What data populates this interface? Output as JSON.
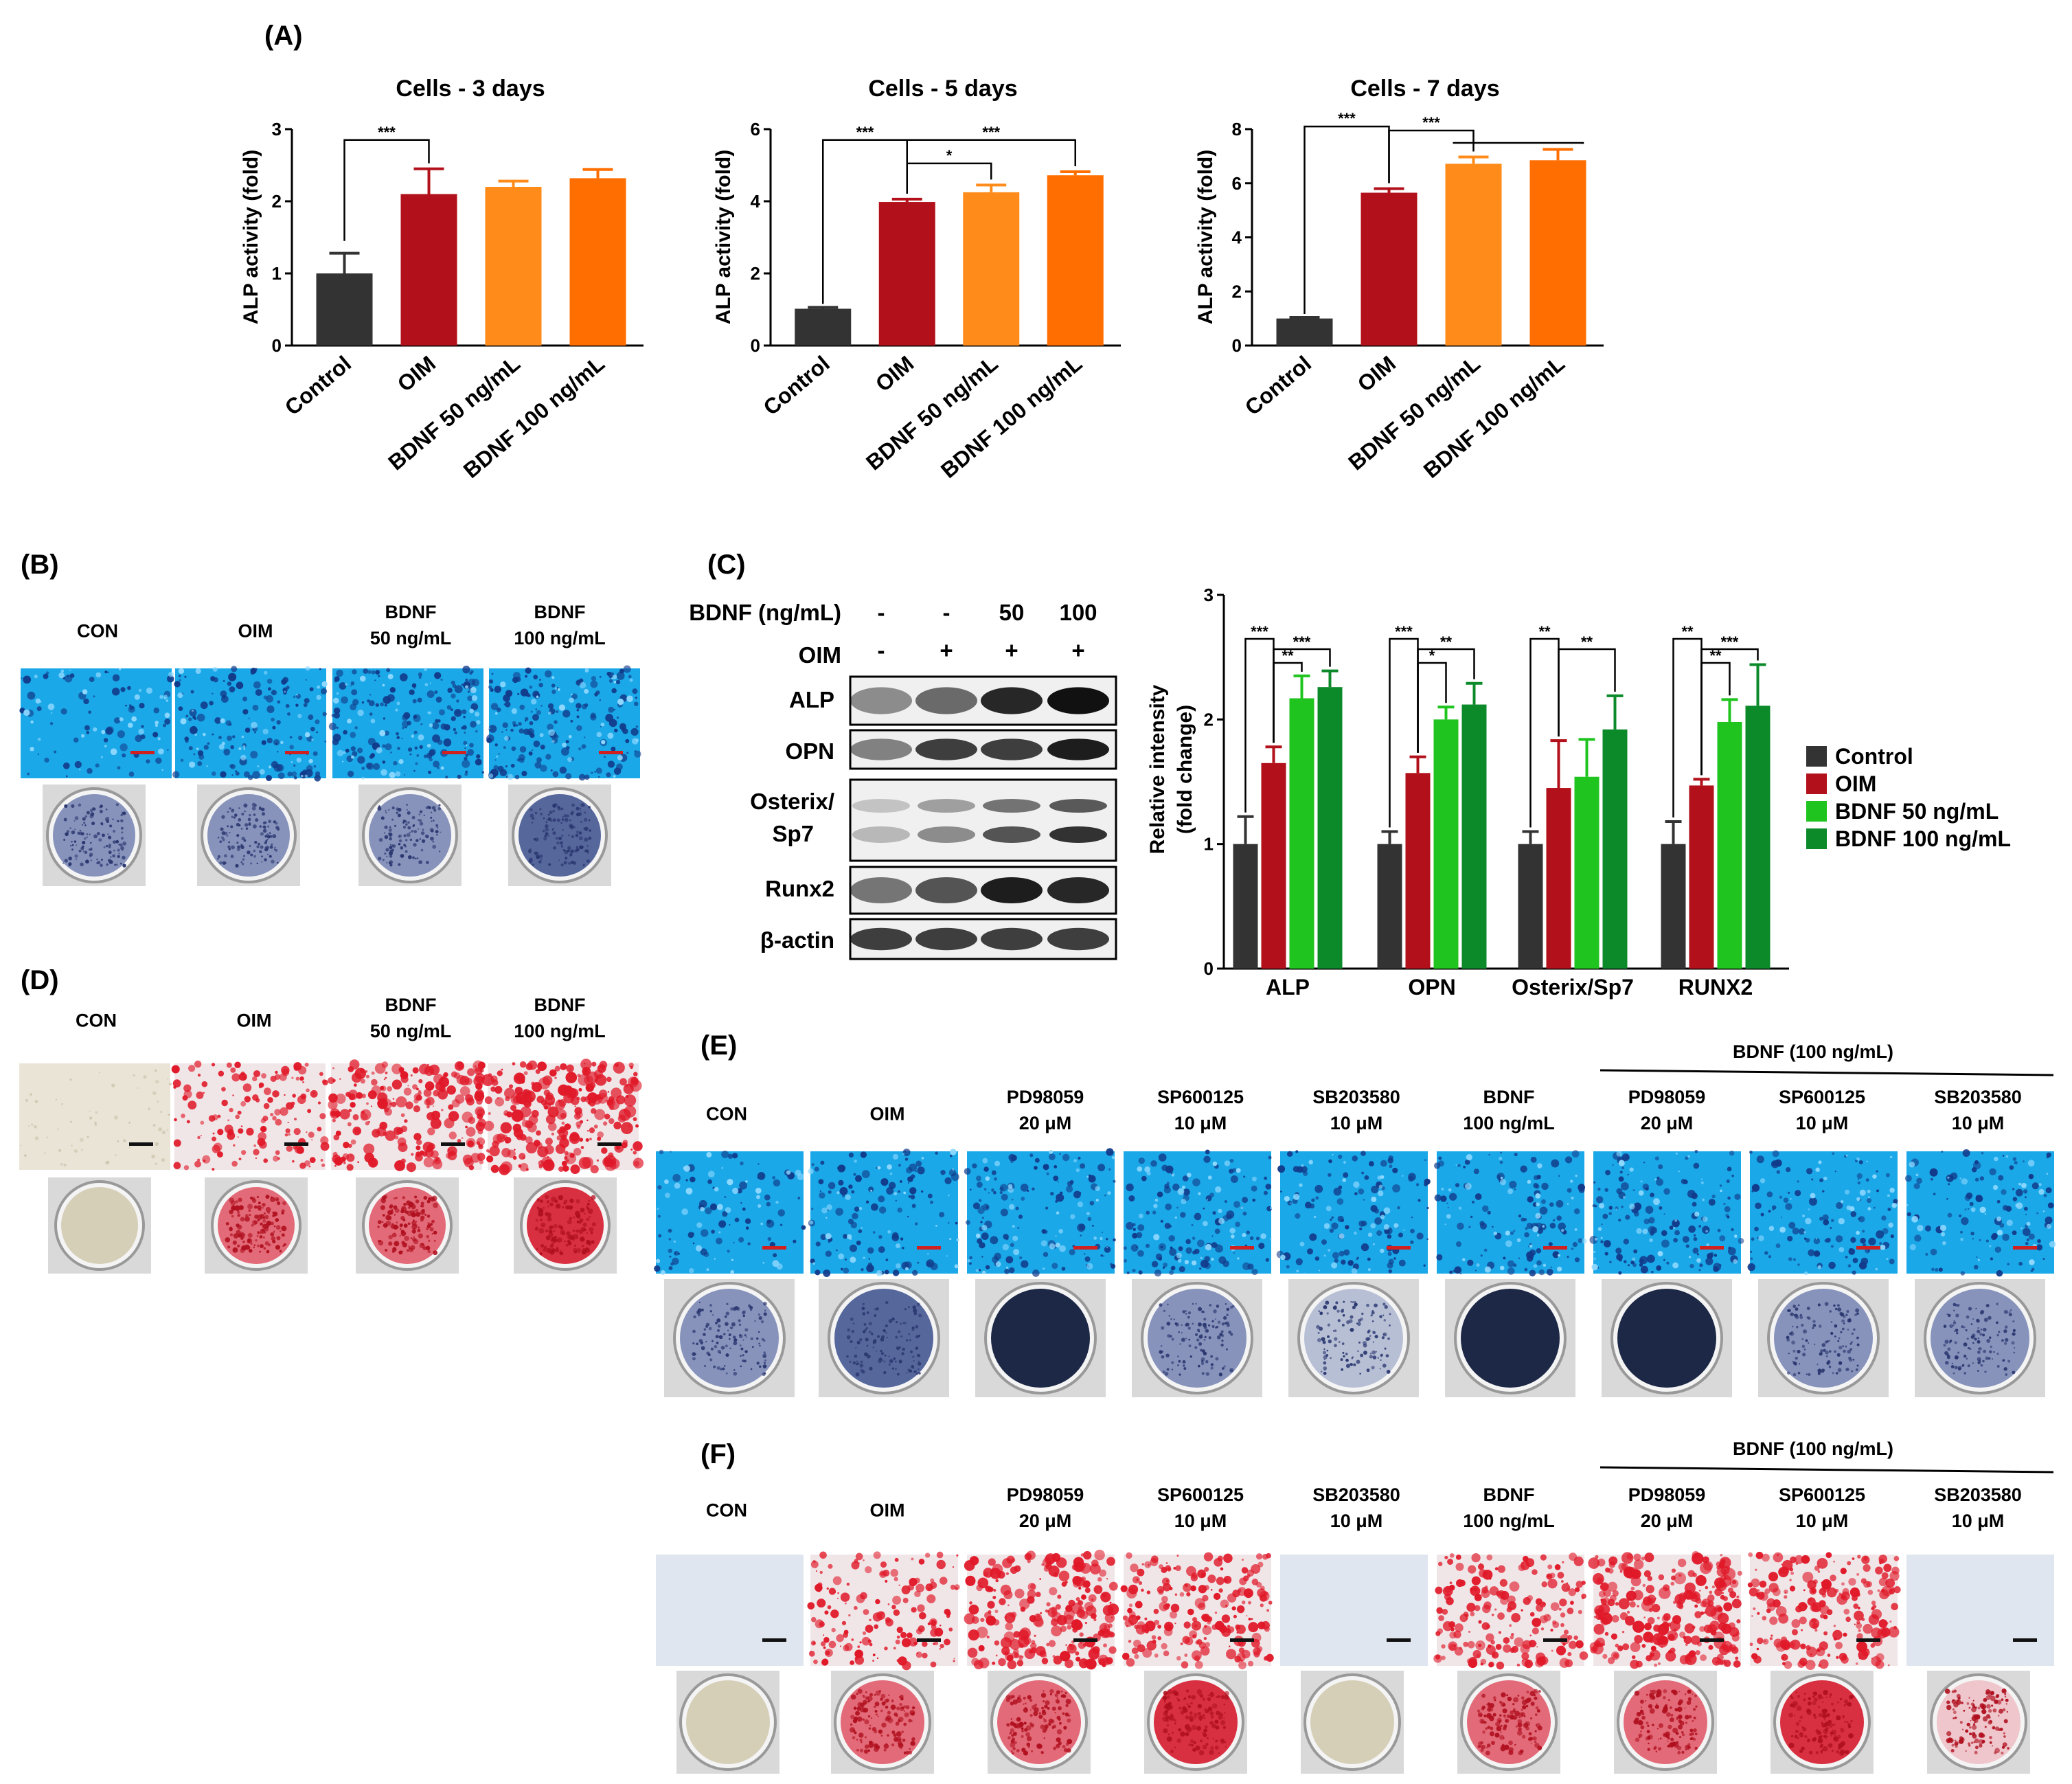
{
  "panel_labels": {
    "A": "(A)",
    "B": "(B)",
    "C": "(C)",
    "D": "(D)",
    "E": "(E)",
    "F": "(F)"
  },
  "colors": {
    "control": "#333333",
    "oim": "#b2101a",
    "bdnf50_orange": "#ff8c1a",
    "bdnf100_orange": "#ff6e00",
    "bdnf50_green": "#1fc41f",
    "bdnf100_green": "#0c8a2a"
  },
  "chart_data": [
    {
      "type": "bar",
      "title": "Cells - 3 days",
      "ylabel": "ALP activity (fold)",
      "categories": [
        "Control",
        "OIM",
        "BDNF 50 ng/mL",
        "BDNF 100 ng/mL"
      ],
      "values": [
        1.0,
        2.1,
        2.2,
        2.32
      ],
      "errors": [
        0.28,
        0.35,
        0.08,
        0.12
      ],
      "ylim": [
        0,
        3
      ],
      "yticks": [
        "0",
        "1",
        "2",
        "3"
      ],
      "significance": [
        {
          "pair": [
            0,
            1
          ],
          "label": "***"
        }
      ]
    },
    {
      "type": "bar",
      "title": "Cells - 5 days",
      "ylabel": "ALP activity (fold)",
      "categories": [
        "Control",
        "OIM",
        "BDNF 50 ng/mL",
        "BDNF 100 ng/mL"
      ],
      "values": [
        1.02,
        3.98,
        4.25,
        4.72
      ],
      "errors": [
        0.04,
        0.08,
        0.2,
        0.1
      ],
      "ylim": [
        0,
        6
      ],
      "yticks": [
        "0",
        "2",
        "4",
        "6"
      ],
      "significance": [
        {
          "pair": [
            0,
            1
          ],
          "label": "***"
        },
        {
          "pair": [
            1,
            2
          ],
          "label": "*"
        },
        {
          "pair": [
            1,
            3
          ],
          "label": "***"
        }
      ]
    },
    {
      "type": "bar",
      "title": "Cells - 7 days",
      "ylabel": "ALP activity (fold)",
      "categories": [
        "Control",
        "OIM",
        "BDNF 50 ng/mL",
        "BDNF 100 ng/mL"
      ],
      "values": [
        1.0,
        5.65,
        6.72,
        6.85
      ],
      "errors": [
        0.04,
        0.15,
        0.25,
        0.4
      ],
      "ylim": [
        0,
        8
      ],
      "yticks": [
        "0",
        "2",
        "4",
        "6",
        "8"
      ],
      "significance": [
        {
          "pair": [
            0,
            1
          ],
          "label": "***"
        },
        {
          "pair": [
            1,
            2
          ],
          "label": "***"
        }
      ]
    },
    {
      "type": "bar",
      "ylabel": "Relative intensity (fold change)",
      "categories": [
        "ALP",
        "OPN",
        "Osterix/Sp7",
        "RUNX2"
      ],
      "series": [
        {
          "name": "Control",
          "values": [
            1.0,
            1.0,
            1.0,
            1.0
          ],
          "errors": [
            0.22,
            0.1,
            0.1,
            0.18
          ]
        },
        {
          "name": "OIM",
          "values": [
            1.65,
            1.57,
            1.45,
            1.47
          ],
          "errors": [
            0.13,
            0.13,
            0.38,
            0.05
          ]
        },
        {
          "name": "BDNF 50 ng/mL",
          "values": [
            2.17,
            2.0,
            1.54,
            1.98
          ],
          "errors": [
            0.18,
            0.1,
            0.3,
            0.18
          ]
        },
        {
          "name": "BDNF 100 ng/mL",
          "values": [
            2.26,
            2.12,
            1.92,
            2.11
          ],
          "errors": [
            0.13,
            0.17,
            0.27,
            0.33
          ]
        }
      ],
      "ylim": [
        0,
        3
      ],
      "yticks": [
        "0",
        "1",
        "2",
        "3"
      ],
      "legend": "right",
      "significance": [
        {
          "group": 0,
          "pair": [
            0,
            1
          ],
          "label": "***"
        },
        {
          "group": 0,
          "pair": [
            1,
            2
          ],
          "label": "**"
        },
        {
          "group": 0,
          "pair": [
            1,
            3
          ],
          "label": "***"
        },
        {
          "group": 1,
          "pair": [
            0,
            1
          ],
          "label": "***"
        },
        {
          "group": 1,
          "pair": [
            1,
            2
          ],
          "label": "*"
        },
        {
          "group": 1,
          "pair": [
            1,
            3
          ],
          "label": "**"
        },
        {
          "group": 2,
          "pair": [
            0,
            1
          ],
          "label": "**"
        },
        {
          "group": 2,
          "pair": [
            1,
            3
          ],
          "label": "**"
        },
        {
          "group": 3,
          "pair": [
            0,
            1
          ],
          "label": "**"
        },
        {
          "group": 3,
          "pair": [
            1,
            2
          ],
          "label": "**"
        },
        {
          "group": 3,
          "pair": [
            1,
            3
          ],
          "label": "***"
        }
      ]
    }
  ],
  "panel_b": {
    "headers": [
      [
        "CON"
      ],
      [
        "OIM"
      ],
      [
        "BDNF",
        "50 ng/mL"
      ],
      [
        "BDNF",
        "100 ng/mL"
      ]
    ],
    "stain": "alp"
  },
  "panel_d": {
    "headers": [
      [
        "CON"
      ],
      [
        "OIM"
      ],
      [
        "BDNF",
        "50 ng/mL"
      ],
      [
        "BDNF",
        "100 ng/mL"
      ]
    ],
    "stain": "ars"
  },
  "western": {
    "bdnf_label": "BDNF (ng/mL)",
    "oim_label": "OIM",
    "bdnf_values": [
      "-",
      "-",
      "50",
      "100"
    ],
    "oim_values": [
      "-",
      "+",
      "+",
      "+"
    ],
    "bands": [
      "ALP",
      "OPN",
      "Osterix/",
      "Sp7",
      "Runx2",
      "β-actin"
    ]
  },
  "panel_e": {
    "group_label": "BDNF (100 ng/mL)",
    "headers": [
      [
        "CON"
      ],
      [
        "OIM"
      ],
      [
        "PD98059",
        "20 μM"
      ],
      [
        "SP600125",
        "10 μM"
      ],
      [
        "SB203580",
        "10 μM"
      ],
      [
        "BDNF",
        "100 ng/mL"
      ],
      [
        "PD98059",
        "20 μM"
      ],
      [
        "SP600125",
        "10 μM"
      ],
      [
        "SB203580",
        "10 μM"
      ]
    ]
  },
  "panel_f": {
    "group_label": "BDNF (100 ng/mL)",
    "headers": [
      [
        "CON"
      ],
      [
        "OIM"
      ],
      [
        "PD98059",
        "20 μM"
      ],
      [
        "SP600125",
        "10 μM"
      ],
      [
        "SB203580",
        "10 μM"
      ],
      [
        "BDNF",
        "100 ng/mL"
      ],
      [
        "PD98059",
        "20 μM"
      ],
      [
        "SP600125",
        "10 μM"
      ],
      [
        "SB203580",
        "10 μM"
      ]
    ]
  }
}
